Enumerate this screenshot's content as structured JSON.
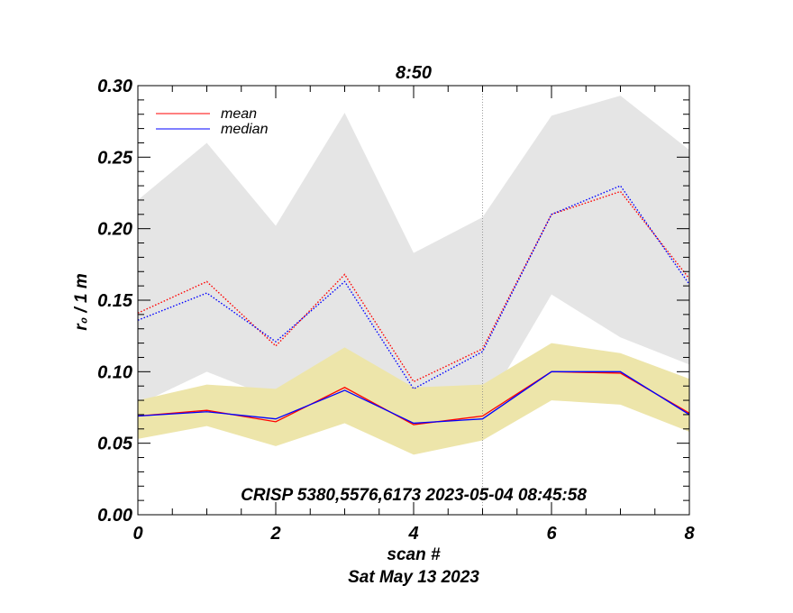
{
  "chart_data": {
    "type": "line",
    "title": "8:50",
    "xlabel": "scan #",
    "ylabel": "r₀ / 1 m",
    "date_label": "Sat May 13 2023",
    "annotation": "CRISP 5380,5576,6173 2023-05-04 08:45:58",
    "xlim": [
      0,
      8
    ],
    "ylim": [
      0.0,
      0.3
    ],
    "x_ticks": [
      "0",
      "2",
      "4",
      "6",
      "8"
    ],
    "y_ticks": [
      "0.00",
      "0.05",
      "0.10",
      "0.15",
      "0.20",
      "0.25",
      "0.30"
    ],
    "x": [
      0,
      1,
      2,
      3,
      4,
      5,
      6,
      7,
      8
    ],
    "series": [
      {
        "name": "mean",
        "style": "solid",
        "color": "#ff0000",
        "values": [
          0.069,
          0.073,
          0.065,
          0.089,
          0.063,
          0.069,
          0.1,
          0.099,
          0.071
        ]
      },
      {
        "name": "median",
        "style": "solid",
        "color": "#0000ff",
        "values": [
          0.069,
          0.072,
          0.067,
          0.087,
          0.064,
          0.067,
          0.1,
          0.1,
          0.07
        ]
      },
      {
        "style": "dotted",
        "color": "#ff0000",
        "values": [
          0.141,
          0.163,
          0.118,
          0.168,
          0.093,
          0.116,
          0.21,
          0.226,
          0.165
        ]
      },
      {
        "style": "dotted",
        "color": "#0000ff",
        "values": [
          0.136,
          0.155,
          0.121,
          0.163,
          0.088,
          0.114,
          0.21,
          0.23,
          0.161
        ]
      }
    ],
    "bands": [
      {
        "color": "#e5e5e5",
        "upper": [
          0.22,
          0.26,
          0.202,
          0.281,
          0.183,
          0.208,
          0.279,
          0.293,
          0.255
        ],
        "lower": [
          0.077,
          0.1,
          0.081,
          0.115,
          0.07,
          0.072,
          0.154,
          0.124,
          0.105
        ]
      },
      {
        "color": "#ede5aa",
        "upper": [
          0.08,
          0.091,
          0.088,
          0.117,
          0.089,
          0.091,
          0.12,
          0.113,
          0.095
        ],
        "lower": [
          0.053,
          0.062,
          0.048,
          0.064,
          0.042,
          0.052,
          0.08,
          0.077,
          0.058
        ]
      }
    ],
    "vline_x": 5,
    "legend_position": "top-left",
    "grid": false
  }
}
